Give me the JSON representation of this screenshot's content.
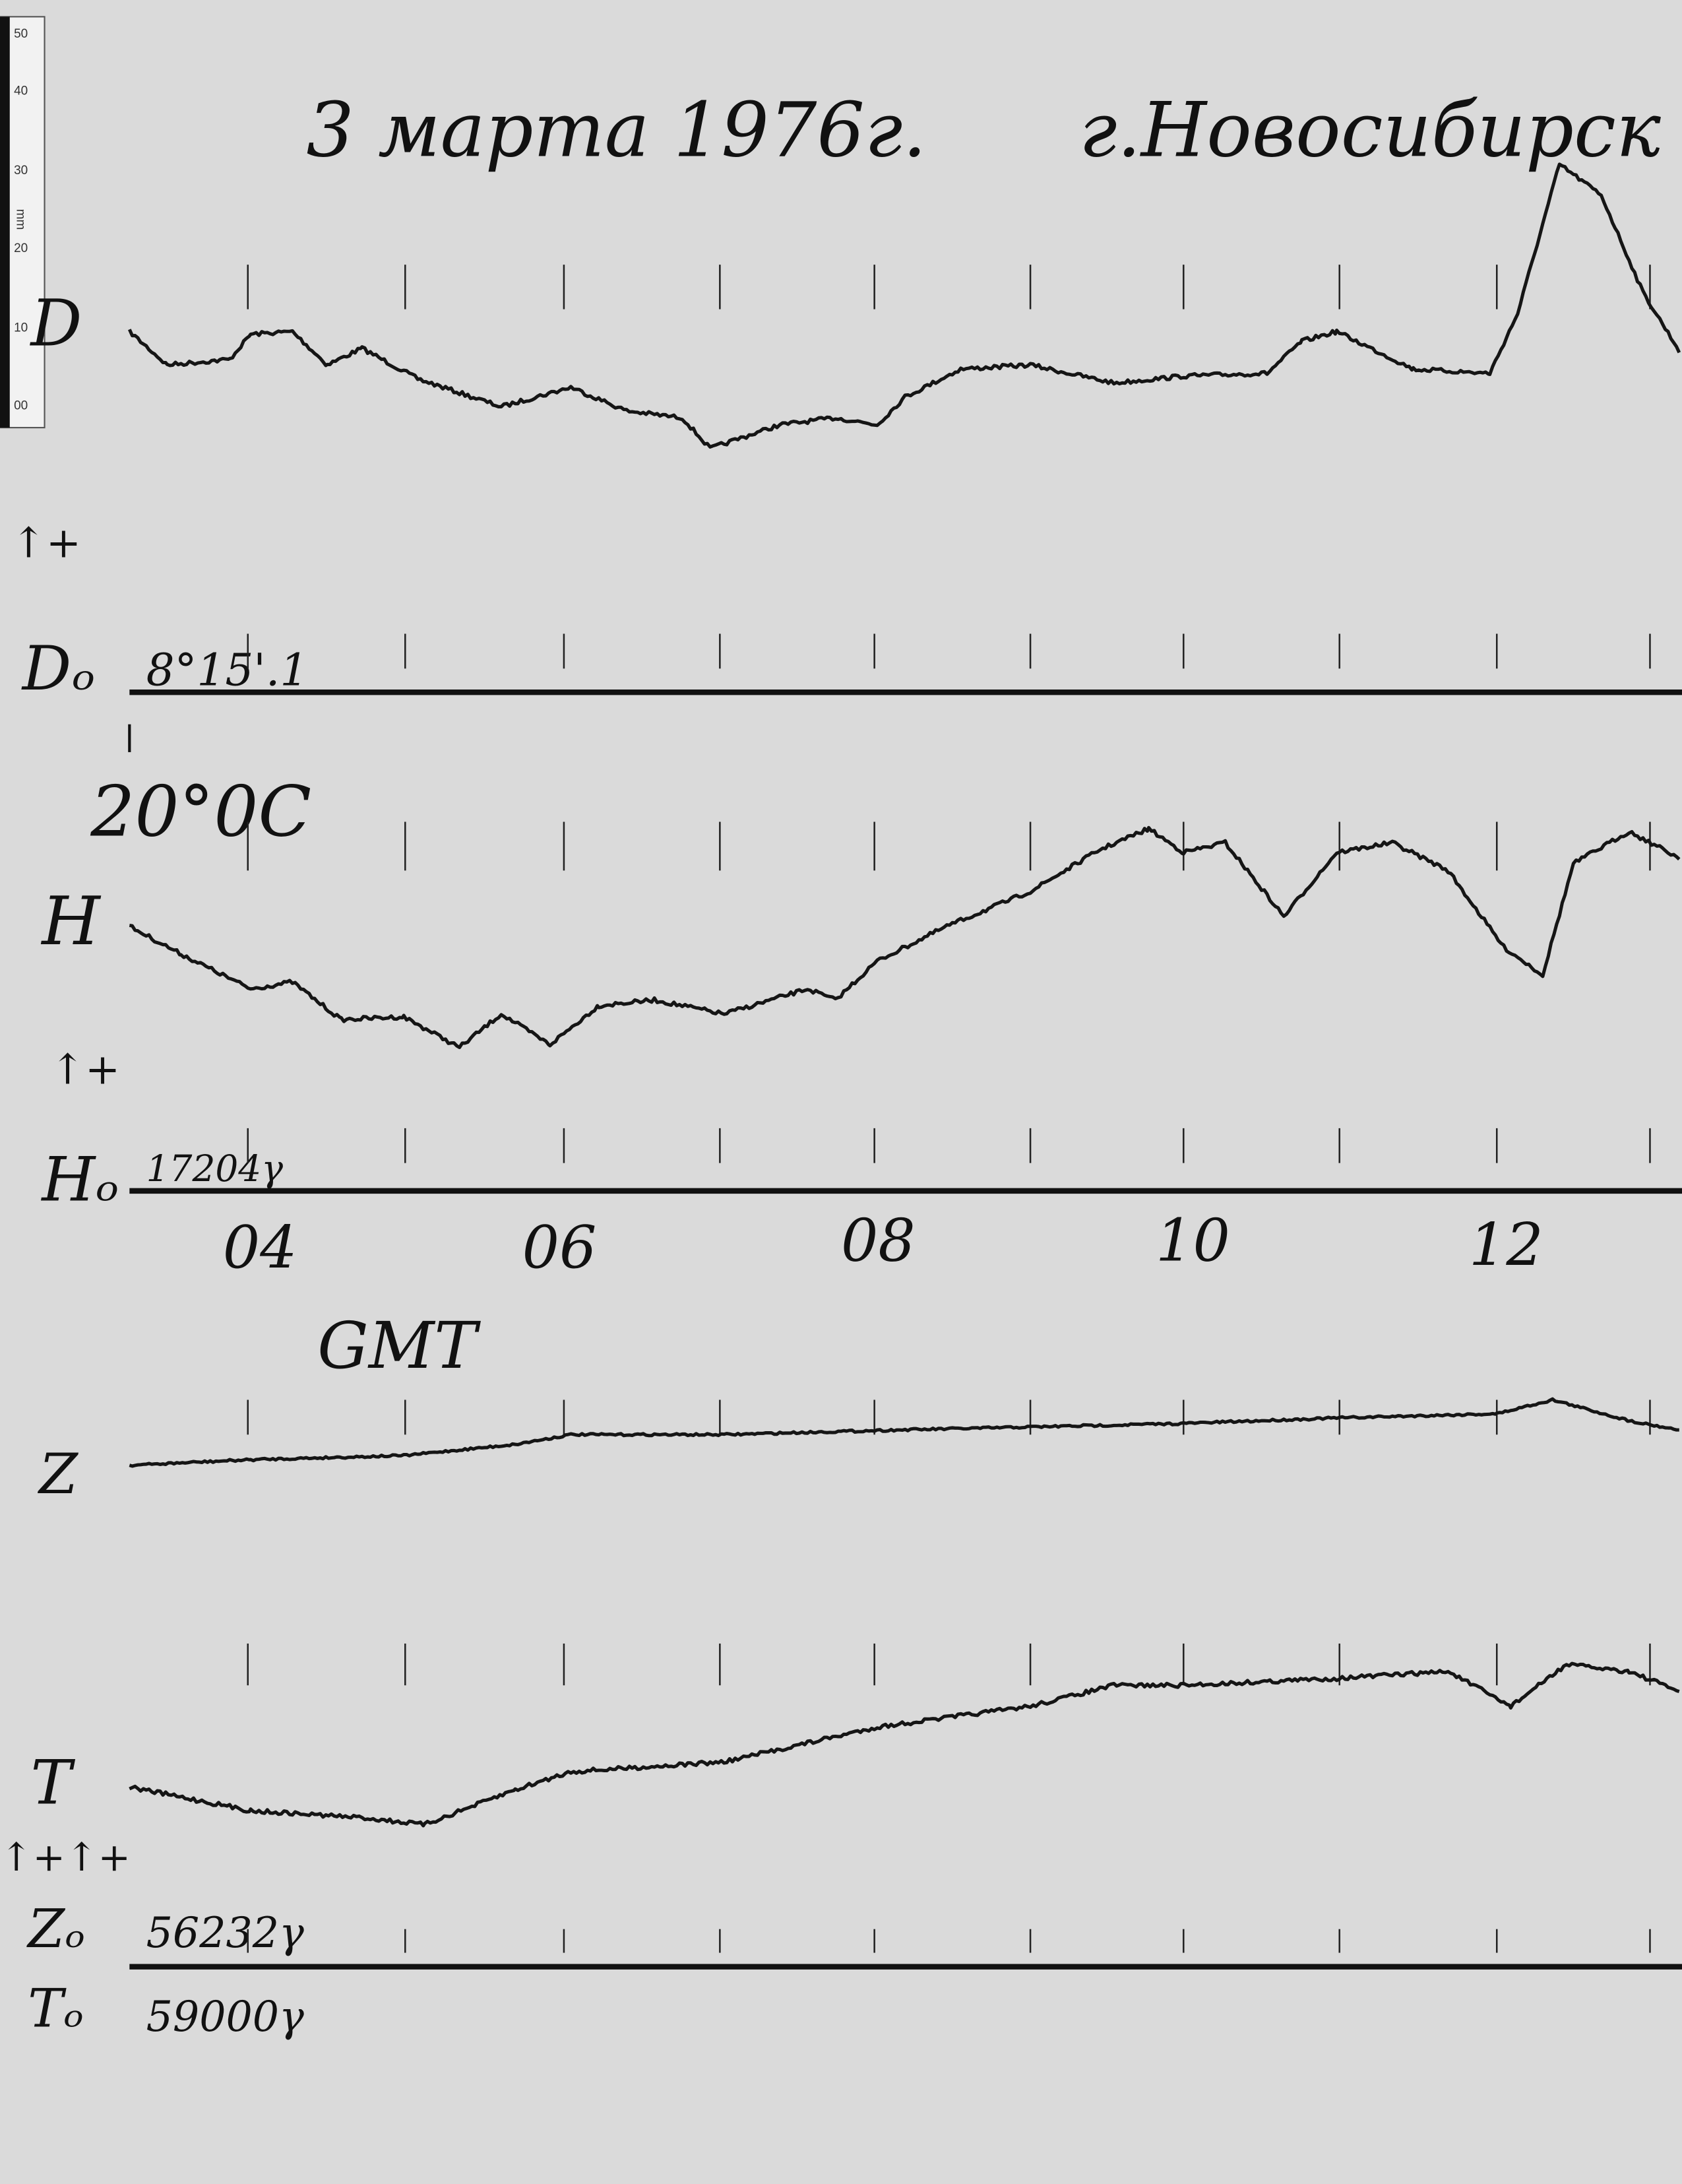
{
  "header": {
    "date": "3 марта 1976г.",
    "place": "г.Новосибирск"
  },
  "ruler": {
    "unit": "mm",
    "labels": [
      "50",
      "40",
      "30",
      "20",
      "10",
      "00"
    ]
  },
  "traces": [
    {
      "label": "D",
      "direction": "↑+",
      "baseline_label": "Dₒ",
      "baseline_value": "8°15'.1"
    },
    {
      "label": "H",
      "direction": "↑+",
      "baseline_label": "Hₒ",
      "baseline_value": "17204γ"
    },
    {
      "label": "Z",
      "baseline_label": "Zₒ",
      "baseline_value": "56232γ"
    },
    {
      "label": "T",
      "baseline_label": "Tₒ",
      "baseline_value": "59000γ"
    }
  ],
  "temperature": "20°0C",
  "combined_direction": "↑+↑+",
  "time_axis": {
    "labels": [
      "04",
      "06",
      "08",
      "10",
      "12"
    ],
    "unit": "GMT"
  }
}
